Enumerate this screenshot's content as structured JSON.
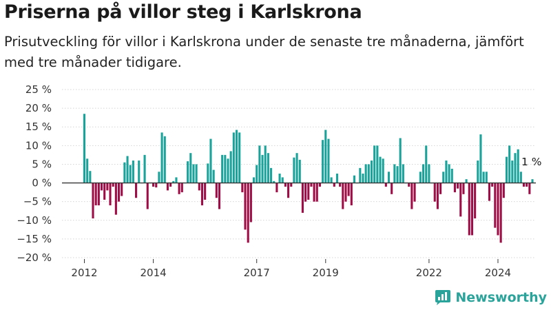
{
  "header": {
    "title": "Priserna på villor steg i Karlskrona",
    "subtitle": "Prisutveckling för villor i Karlskrona under de senaste tre månaderna, jämfört med tre månader tidigare."
  },
  "brand": {
    "name": "Newsworthy",
    "icon": "newsworthy-chart-icon",
    "color": "#2aa39b"
  },
  "colors": {
    "positive": "#1aa39a",
    "negative": "#9e0d46",
    "grid": "#d4d4d4",
    "zero_line": "#333333"
  },
  "chart_data": {
    "type": "bar",
    "title": "Priserna på villor steg i Karlskrona",
    "ylim": [
      -20,
      25
    ],
    "ytick_values": [
      25,
      20,
      15,
      10,
      5,
      0,
      -5,
      -10,
      -15,
      -20
    ],
    "ytick_labels": [
      "25 %",
      "20 %",
      "15 %",
      "10 %",
      "5 %",
      "0 %",
      "−5 %",
      "−10 %",
      "−15 %",
      "−20 %"
    ],
    "xtick_labels": [
      "2012",
      "2014",
      "2017",
      "2019",
      "2022",
      "2024"
    ],
    "xtick_positions": [
      0,
      24,
      60,
      84,
      120,
      144
    ],
    "grid": true,
    "annotation": "1 %",
    "values": [
      18.5,
      6.5,
      3.2,
      -9.5,
      -6,
      -6,
      -2,
      -4.5,
      -2,
      -6,
      -1,
      -8.5,
      -5,
      -3.5,
      5.5,
      7.2,
      4.8,
      6,
      -4,
      6,
      0,
      7.5,
      -7,
      0,
      -1,
      -1.2,
      3,
      13.5,
      12.5,
      -2,
      -1,
      0.5,
      1.5,
      -3,
      -2.5,
      0,
      5.8,
      8,
      5,
      5,
      -2,
      -6,
      -4.5,
      5.2,
      11.8,
      3.5,
      -4,
      -7,
      7.5,
      7.5,
      6.5,
      8.5,
      13.5,
      14.2,
      13.5,
      -2.5,
      -12.5,
      -16,
      -10.5,
      1.5,
      4.8,
      10,
      7.5,
      10,
      8,
      4,
      0.5,
      -2.5,
      2.5,
      1.5,
      -1,
      -4,
      -1,
      6.8,
      8,
      6.2,
      -8,
      -5,
      -4.5,
      -1,
      -5,
      -5,
      -1,
      11.5,
      14.2,
      11.8,
      1.5,
      -1,
      2.5,
      -1,
      -7,
      -5,
      -3.5,
      -6,
      2,
      0,
      4,
      2.5,
      5,
      5,
      6,
      10,
      10,
      7,
      6.5,
      -1,
      3,
      -3,
      5,
      4.5,
      12,
      5,
      0,
      -1,
      -7,
      -5,
      0,
      3,
      5,
      10,
      5,
      0,
      -5,
      -7,
      -3,
      3,
      6,
      5,
      3.8,
      -2.5,
      -1.5,
      -9,
      -3,
      1,
      -14,
      -14,
      -9.5,
      6,
      13,
      3,
      3,
      -4.8,
      -1,
      -12,
      -14,
      -16,
      -4,
      7,
      10,
      6,
      8,
      9,
      3,
      -1,
      -1,
      -3,
      1
    ]
  }
}
